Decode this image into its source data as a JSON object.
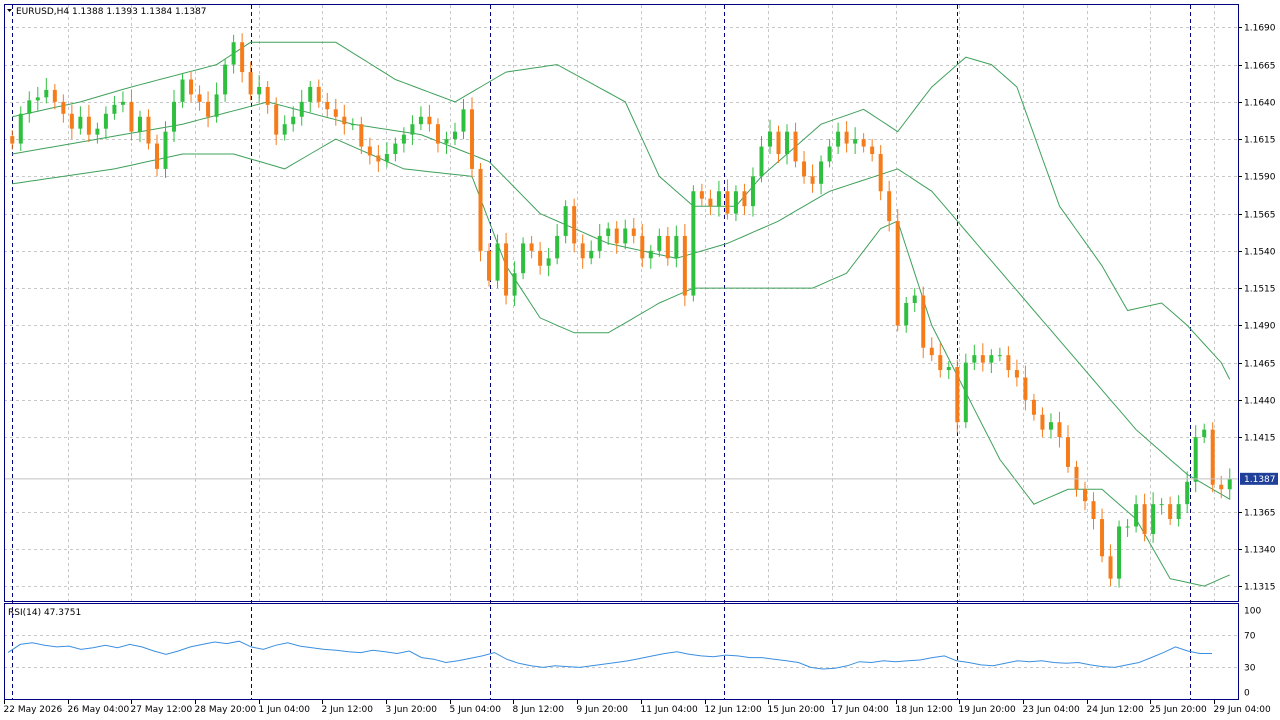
{
  "header": {
    "symbol_label": "EURUSD,H4  1.1388 1.1393 1.1384 1.1387"
  },
  "rsi_panel": {
    "label": "RSI(14) 47.3751",
    "levels": [
      "100",
      "70",
      "30",
      "0"
    ]
  },
  "current_price_label": "1.1387",
  "colors": {
    "bull": "#2fbf3f",
    "bear": "#f57c1b",
    "bands": "#3fa05a",
    "rsi": "#3b8fe0",
    "frame": "#000080",
    "grid": "#c8c8c8",
    "price_tag": "#1f3f99"
  },
  "chart_data": [
    {
      "type": "candlestick",
      "title": "EURUSD,H4",
      "ohlc_header": "1.1388 1.1393 1.1384 1.1387",
      "ylim": [
        1.1305,
        1.1705
      ],
      "y_ticks": [
        "1.1690",
        "1.1665",
        "1.1640",
        "1.1615",
        "1.1590",
        "1.1565",
        "1.1540",
        "1.1515",
        "1.1490",
        "1.1465",
        "1.1440",
        "1.1415",
        "1.1365",
        "1.1340",
        "1.1315"
      ],
      "x_ticks": [
        "22 May 2026",
        "26 May 04:00",
        "27 May 12:00",
        "28 May 20:00",
        "1 Jun 04:00",
        "2 Jun 12:00",
        "3 Jun 20:00",
        "5 Jun 04:00",
        "8 Jun 12:00",
        "9 Jun 20:00",
        "11 Jun 04:00",
        "12 Jun 12:00",
        "15 Jun 20:00",
        "17 Jun 04:00",
        "18 Jun 12:00",
        "19 Jun 20:00",
        "23 Jun 04:00",
        "24 Jun 12:00",
        "25 Jun 20:00",
        "29 Jun 04:00"
      ],
      "close_series": [
        1.1612,
        1.1632,
        1.1641,
        1.1643,
        1.1648,
        1.164,
        1.1632,
        1.1622,
        1.163,
        1.1618,
        1.1622,
        1.1632,
        1.1638,
        1.164,
        1.162,
        1.163,
        1.1612,
        1.1595,
        1.162,
        1.164,
        1.1655,
        1.1645,
        1.164,
        1.163,
        1.1645,
        1.1665,
        1.168,
        1.166,
        1.1645,
        1.165,
        1.1638,
        1.1618,
        1.1625,
        1.163,
        1.164,
        1.165,
        1.164,
        1.1635,
        1.163,
        1.1625,
        1.1625,
        1.161,
        1.1604,
        1.16,
        1.1605,
        1.1612,
        1.1618,
        1.1625,
        1.163,
        1.1625,
        1.1612,
        1.1615,
        1.162,
        1.1635,
        1.1595,
        1.154,
        1.152,
        1.1545,
        1.151,
        1.1525,
        1.1545,
        1.154,
        1.153,
        1.1535,
        1.155,
        1.157,
        1.1545,
        1.1535,
        1.154,
        1.155,
        1.1555,
        1.1545,
        1.1555,
        1.155,
        1.1535,
        1.154,
        1.155,
        1.1535,
        1.155,
        1.151,
        1.158,
        1.1575,
        1.157,
        1.158,
        1.1565,
        1.158,
        1.157,
        1.159,
        1.161,
        1.162,
        1.1605,
        1.162,
        1.16,
        1.159,
        1.1585,
        1.16,
        1.161,
        1.162,
        1.1612,
        1.1615,
        1.161,
        1.1605,
        1.158,
        1.156,
        1.149,
        1.1505,
        1.151,
        1.1475,
        1.147,
        1.146,
        1.1462,
        1.1425,
        1.1465,
        1.147,
        1.1465,
        1.147,
        1.147,
        1.146,
        1.1455,
        1.144,
        1.143,
        1.142,
        1.1425,
        1.1415,
        1.1395,
        1.138,
        1.1372,
        1.136,
        1.1335,
        1.132,
        1.1355,
        1.1355,
        1.137,
        1.135,
        1.137,
        1.137,
        1.136,
        1.137,
        1.1385,
        1.1415,
        1.142,
        1.1383,
        1.138,
        1.1387
      ],
      "series": [
        {
          "name": "Bollinger Bands",
          "upper_knots": [
            [
              0,
              1.163
            ],
            [
              8,
              1.164
            ],
            [
              14,
              1.165
            ],
            [
              24,
              1.1665
            ],
            [
              28,
              1.168
            ],
            [
              38,
              1.168
            ],
            [
              45,
              1.1655
            ],
            [
              52,
              1.164
            ],
            [
              58,
              1.166
            ],
            [
              64,
              1.1665
            ],
            [
              72,
              1.164
            ],
            [
              76,
              1.159
            ],
            [
              80,
              1.157
            ],
            [
              85,
              1.157
            ],
            [
              88,
              1.159
            ],
            [
              95,
              1.1625
            ],
            [
              100,
              1.1635
            ],
            [
              104,
              1.162
            ],
            [
              108,
              1.165
            ],
            [
              112,
              1.167
            ],
            [
              115,
              1.1665
            ],
            [
              118,
              1.165
            ],
            [
              123,
              1.157
            ],
            [
              128,
              1.153
            ],
            [
              131,
              1.15
            ],
            [
              135,
              1.1505
            ],
            [
              138,
              1.149
            ],
            [
              142,
              1.1465
            ],
            [
              146,
              1.142
            ],
            [
              150,
              1.141
            ]
          ]
        },
        {
          "name": "Bollinger Middle",
          "knots": [
            [
              0,
              1.1605
            ],
            [
              10,
              1.1615
            ],
            [
              20,
              1.1625
            ],
            [
              30,
              1.164
            ],
            [
              40,
              1.1625
            ],
            [
              48,
              1.1618
            ],
            [
              56,
              1.16
            ],
            [
              62,
              1.1565
            ],
            [
              70,
              1.1545
            ],
            [
              78,
              1.1535
            ],
            [
              84,
              1.1545
            ],
            [
              90,
              1.156
            ],
            [
              96,
              1.158
            ],
            [
              104,
              1.1595
            ],
            [
              108,
              1.158
            ],
            [
              114,
              1.154
            ],
            [
              120,
              1.15
            ],
            [
              126,
              1.146
            ],
            [
              132,
              1.142
            ],
            [
              138,
              1.139
            ],
            [
              144,
              1.137
            ],
            [
              150,
              1.137
            ]
          ]
        },
        {
          "name": "Bollinger Lower",
          "knots": [
            [
              0,
              1.1585
            ],
            [
              6,
              1.159
            ],
            [
              12,
              1.1595
            ],
            [
              20,
              1.1605
            ],
            [
              26,
              1.1605
            ],
            [
              32,
              1.1595
            ],
            [
              38,
              1.1615
            ],
            [
              46,
              1.1595
            ],
            [
              54,
              1.159
            ],
            [
              58,
              1.153
            ],
            [
              62,
              1.1495
            ],
            [
              66,
              1.1485
            ],
            [
              70,
              1.1485
            ],
            [
              76,
              1.1505
            ],
            [
              80,
              1.1515
            ],
            [
              86,
              1.1515
            ],
            [
              90,
              1.1515
            ],
            [
              94,
              1.1515
            ],
            [
              98,
              1.1525
            ],
            [
              102,
              1.1555
            ],
            [
              104,
              1.156
            ],
            [
              108,
              1.149
            ],
            [
              112,
              1.1445
            ],
            [
              116,
              1.14
            ],
            [
              120,
              1.137
            ],
            [
              124,
              1.138
            ],
            [
              128,
              1.138
            ],
            [
              132,
              1.136
            ],
            [
              136,
              1.132
            ],
            [
              140,
              1.1315
            ],
            [
              144,
              1.1325
            ],
            [
              148,
              1.133
            ],
            [
              150,
              1.133
            ]
          ]
        }
      ],
      "current_price": 1.1387
    },
    {
      "type": "line",
      "title": "RSI(14) 47.3751",
      "ylim": [
        0,
        100
      ],
      "y_ticks": [
        "100",
        "70",
        "30",
        "0"
      ],
      "series": [
        {
          "name": "RSI(14)",
          "values": [
            48,
            58,
            60,
            57,
            55,
            56,
            52,
            54,
            57,
            54,
            58,
            55,
            50,
            46,
            50,
            55,
            58,
            61,
            59,
            62,
            55,
            52,
            57,
            60,
            56,
            54,
            52,
            51,
            49,
            48,
            51,
            49,
            47,
            50,
            42,
            40,
            36,
            38,
            41,
            44,
            48,
            40,
            35,
            32,
            30,
            32,
            31,
            30,
            32,
            34,
            36,
            38,
            41,
            44,
            47,
            49,
            46,
            44,
            43,
            45,
            44,
            42,
            42,
            40,
            38,
            36,
            30,
            28,
            29,
            32,
            37,
            36,
            38,
            37,
            38,
            39,
            42,
            44,
            38,
            36,
            33,
            32,
            35,
            38,
            37,
            38,
            36,
            35,
            36,
            33,
            31,
            30,
            33,
            36,
            42,
            48,
            55,
            50,
            47,
            47
          ]
        }
      ]
    }
  ]
}
